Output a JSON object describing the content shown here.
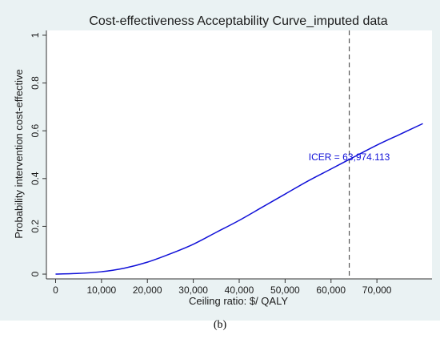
{
  "caption": "(b)",
  "chart_data": {
    "type": "line",
    "title": "Cost-effectiveness Acceptability Curve_imputed data",
    "xlabel": "Ceiling ratio: $/ QALY",
    "ylabel": "Probability intervention cost-effective",
    "xlim": [
      -2000,
      82000
    ],
    "ylim": [
      -0.02,
      1.02
    ],
    "x_ticks": [
      0,
      10000,
      20000,
      30000,
      40000,
      50000,
      60000,
      70000
    ],
    "x_tick_labels": [
      "0",
      "10,000",
      "20,000",
      "30,000",
      "40,000",
      "50,000",
      "60,000",
      "70,000"
    ],
    "y_ticks": [
      0,
      0.2,
      0.4,
      0.6,
      0.8,
      1
    ],
    "y_tick_labels": [
      "0",
      "0.2",
      "0.4",
      "0.6",
      "0.8",
      "1"
    ],
    "grid": false,
    "series": [
      {
        "color": "#1010d8",
        "x": [
          0,
          5000,
          10000,
          15000,
          20000,
          25000,
          30000,
          35000,
          40000,
          45000,
          50000,
          55000,
          60000,
          63974,
          70000,
          75000,
          80000
        ],
        "y": [
          0.0,
          0.003,
          0.01,
          0.025,
          0.05,
          0.085,
          0.125,
          0.175,
          0.225,
          0.28,
          0.335,
          0.39,
          0.44,
          0.48,
          0.54,
          0.585,
          0.63
        ]
      }
    ],
    "vline": {
      "x": 63974,
      "color": "#555555",
      "style": "dashed"
    },
    "annotation": {
      "text": "ICER = 63,974.113",
      "x": 63974,
      "y": 0.49,
      "color": "#1010d8"
    }
  }
}
